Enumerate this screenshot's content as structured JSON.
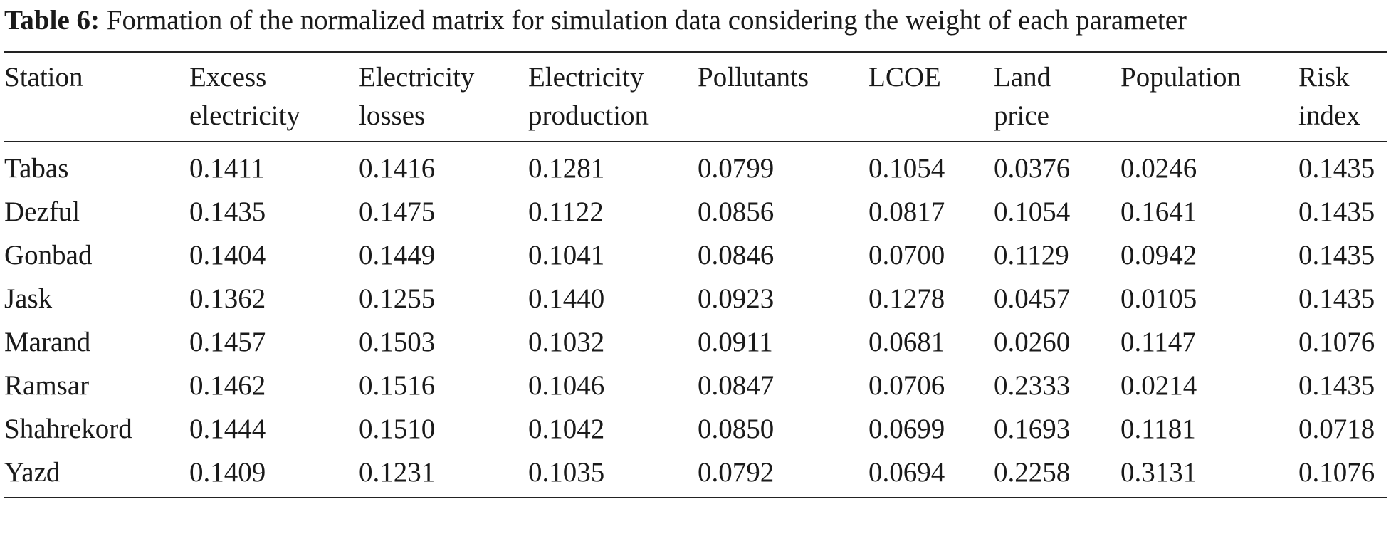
{
  "caption": {
    "label": "Table 6:",
    "text": "Formation of the normalized matrix for simulation data considering the weight of each parameter"
  },
  "table": {
    "headers": [
      [
        "Station"
      ],
      [
        "Excess",
        "electricity"
      ],
      [
        "Electricity",
        "losses"
      ],
      [
        "Electricity",
        "production"
      ],
      [
        "Pollutants"
      ],
      [
        "LCOE"
      ],
      [
        "Land",
        "price"
      ],
      [
        "Population"
      ],
      [
        "Risk",
        "index"
      ]
    ],
    "rows": [
      [
        "Tabas",
        "0.1411",
        "0.1416",
        "0.1281",
        "0.0799",
        "0.1054",
        "0.0376",
        "0.0246",
        "0.1435"
      ],
      [
        "Dezful",
        "0.1435",
        "0.1475",
        "0.1122",
        "0.0856",
        "0.0817",
        "0.1054",
        "0.1641",
        "0.1435"
      ],
      [
        "Gonbad",
        "0.1404",
        "0.1449",
        "0.1041",
        "0.0846",
        "0.0700",
        "0.1129",
        "0.0942",
        "0.1435"
      ],
      [
        "Jask",
        "0.1362",
        "0.1255",
        "0.1440",
        "0.0923",
        "0.1278",
        "0.0457",
        "0.0105",
        "0.1435"
      ],
      [
        "Marand",
        "0.1457",
        "0.1503",
        "0.1032",
        "0.0911",
        "0.0681",
        "0.0260",
        "0.1147",
        "0.1076"
      ],
      [
        "Ramsar",
        "0.1462",
        "0.1516",
        "0.1046",
        "0.0847",
        "0.0706",
        "0.2333",
        "0.0214",
        "0.1435"
      ],
      [
        "Shahrekord",
        "0.1444",
        "0.1510",
        "0.1042",
        "0.0850",
        "0.0699",
        "0.1693",
        "0.1181",
        "0.0718"
      ],
      [
        "Yazd",
        "0.1409",
        "0.1231",
        "0.1035",
        "0.0792",
        "0.0694",
        "0.2258",
        "0.3131",
        "0.1076"
      ]
    ]
  }
}
